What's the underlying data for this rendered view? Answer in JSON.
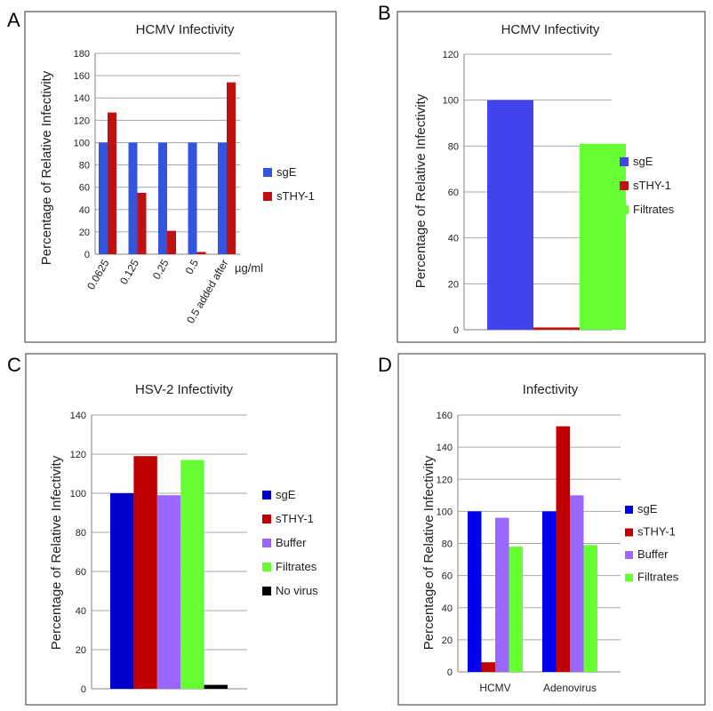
{
  "panels": [
    {
      "letter": "A"
    },
    {
      "letter": "B"
    },
    {
      "letter": "C"
    },
    {
      "letter": "D"
    }
  ],
  "chart_data": [
    {
      "type": "bar",
      "title": "HCMV Infectivity",
      "ylabel": "Percentage of Relative Infectivity",
      "xlabel": "",
      "x_unit": "µg/ml",
      "categories": [
        "0.0625",
        "0.125",
        "0.25",
        "0.5",
        "0.5 added after"
      ],
      "series": [
        {
          "name": "sgE",
          "color": "#3355dd",
          "values": [
            100,
            100,
            100,
            100,
            100
          ]
        },
        {
          "name": "sTHY-1",
          "color": "#c01010",
          "values": [
            127,
            55,
            21,
            2,
            154
          ]
        }
      ],
      "ylim": [
        0,
        180
      ],
      "yticks": [
        0,
        20,
        40,
        60,
        80,
        100,
        120,
        140,
        160,
        180
      ],
      "grid": true,
      "legend_position": "right"
    },
    {
      "type": "bar",
      "title": "HCMV Infectivity",
      "ylabel": "Percentage of Relative Infectivity",
      "xlabel": "",
      "categories": [
        ""
      ],
      "series": [
        {
          "name": "sgE",
          "color": "#4444ee",
          "values": [
            100
          ]
        },
        {
          "name": "sTHY-1",
          "color": "#c01010",
          "values": [
            1
          ]
        },
        {
          "name": "Filtrates",
          "color": "#66ff33",
          "values": [
            81
          ]
        }
      ],
      "ylim": [
        0,
        120
      ],
      "yticks": [
        0,
        20,
        40,
        60,
        80,
        100,
        120
      ],
      "grid": true,
      "legend_position": "right"
    },
    {
      "type": "bar",
      "title": "HSV-2 Infectivity",
      "ylabel": "Percentage of Relative Infectivity",
      "xlabel": "",
      "categories": [
        ""
      ],
      "series": [
        {
          "name": "sgE",
          "color": "#0000cc",
          "values": [
            100
          ]
        },
        {
          "name": "sTHY-1",
          "color": "#c00000",
          "values": [
            119
          ]
        },
        {
          "name": "Buffer",
          "color": "#9966ff",
          "values": [
            99
          ]
        },
        {
          "name": "Filtrates",
          "color": "#66ff33",
          "values": [
            117
          ]
        },
        {
          "name": "No virus",
          "color": "#000000",
          "values": [
            2
          ]
        }
      ],
      "ylim": [
        0,
        140
      ],
      "yticks": [
        0,
        20,
        40,
        60,
        80,
        100,
        120,
        140
      ],
      "grid": true,
      "legend_position": "right"
    },
    {
      "type": "bar",
      "title": "Infectivity",
      "ylabel": "Percentage of Relative Infectivity",
      "xlabel": "",
      "categories": [
        "HCMV",
        "Adenovirus"
      ],
      "series": [
        {
          "name": "sgE",
          "color": "#0000ee",
          "values": [
            100,
            100
          ]
        },
        {
          "name": "sTHY-1",
          "color": "#c00000",
          "values": [
            6,
            153
          ]
        },
        {
          "name": "Buffer",
          "color": "#9966ff",
          "values": [
            96,
            110
          ]
        },
        {
          "name": "Filtrates",
          "color": "#66ff33",
          "values": [
            78,
            79
          ]
        }
      ],
      "ylim": [
        0,
        160
      ],
      "yticks": [
        0,
        20,
        40,
        60,
        80,
        100,
        120,
        140,
        160
      ],
      "grid": true,
      "legend_position": "right"
    }
  ]
}
